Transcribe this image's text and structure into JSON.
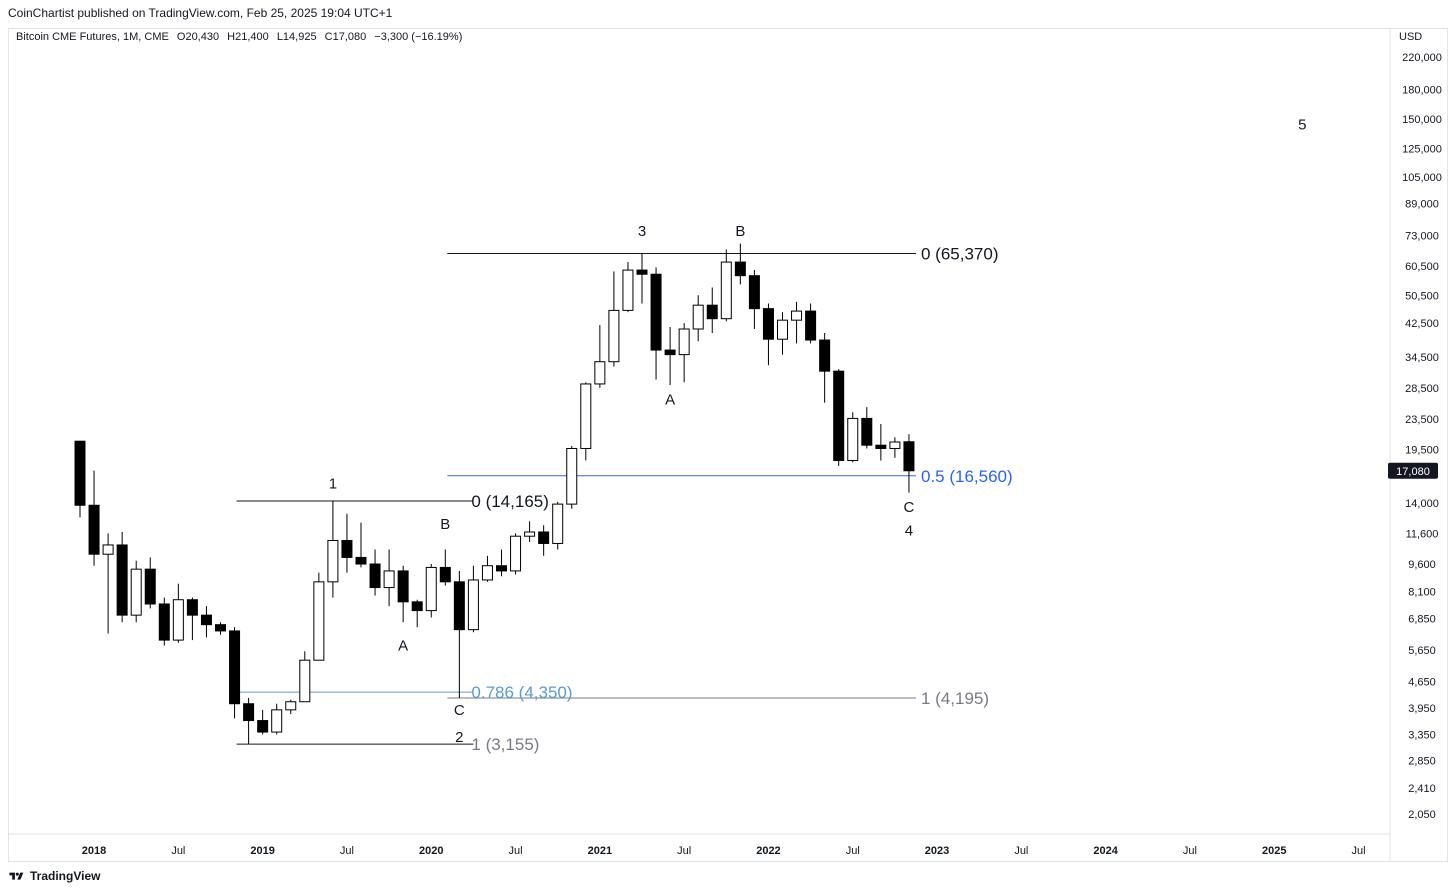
{
  "header": {
    "publish_line": "CoinChartist published on TradingView.com, Feb 25, 2025 19:04 UTC+1"
  },
  "legend": {
    "symbol": "Bitcoin CME Futures, 1M, CME",
    "open": "O20,430",
    "high": "H21,400",
    "low": "L14,925",
    "close": "C17,080",
    "change": "−3,300 (−16.19%)"
  },
  "axis": {
    "currency": "USD"
  },
  "price_label": "17,080",
  "footer": {
    "brand": "TradingView"
  },
  "colors": {
    "up_body": "#ffffff",
    "down_body": "#000000",
    "wick": "#000000",
    "fib_blue": "#2962ff",
    "fib_lightblue": "#5b9bd5",
    "fib_gray": "#787b86"
  },
  "chart_data": {
    "type": "candlestick",
    "y_scale": "log",
    "ylim": [
      1800,
      260000
    ],
    "y_ticks": [
      220000,
      180000,
      150000,
      125000,
      105000,
      89000,
      73000,
      60500,
      50500,
      42500,
      34500,
      28500,
      23500,
      19500,
      14000,
      11600,
      9600,
      8100,
      6850,
      5650,
      4650,
      3950,
      3350,
      2850,
      2410,
      2050
    ],
    "x_ticks": [
      {
        "date": "2018-01",
        "label": "2018",
        "major": true
      },
      {
        "date": "2018-07",
        "label": "Jul",
        "major": false
      },
      {
        "date": "2019-01",
        "label": "2019",
        "major": true
      },
      {
        "date": "2019-07",
        "label": "Jul",
        "major": false
      },
      {
        "date": "2020-01",
        "label": "2020",
        "major": true
      },
      {
        "date": "2020-07",
        "label": "Jul",
        "major": false
      },
      {
        "date": "2021-01",
        "label": "2021",
        "major": true
      },
      {
        "date": "2021-07",
        "label": "Jul",
        "major": false
      },
      {
        "date": "2022-01",
        "label": "2022",
        "major": true
      },
      {
        "date": "2022-07",
        "label": "Jul",
        "major": false
      },
      {
        "date": "2023-01",
        "label": "2023",
        "major": true
      },
      {
        "date": "2023-07",
        "label": "Jul",
        "major": false
      },
      {
        "date": "2024-01",
        "label": "2024",
        "major": true
      },
      {
        "date": "2024-07",
        "label": "Jul",
        "major": false
      },
      {
        "date": "2025-01",
        "label": "2025",
        "major": true
      },
      {
        "date": "2025-07",
        "label": "Jul",
        "major": false
      }
    ],
    "candles": [
      {
        "date": "2017-12",
        "o": 20500,
        "h": 20500,
        "l": 12800,
        "c": 13800
      },
      {
        "date": "2018-01",
        "o": 13800,
        "h": 17100,
        "l": 9500,
        "c": 10200
      },
      {
        "date": "2018-02",
        "o": 10200,
        "h": 11600,
        "l": 6250,
        "c": 10800
      },
      {
        "date": "2018-03",
        "o": 10800,
        "h": 11700,
        "l": 6700,
        "c": 7000
      },
      {
        "date": "2018-04",
        "o": 7000,
        "h": 9800,
        "l": 6700,
        "c": 9300
      },
      {
        "date": "2018-05",
        "o": 9300,
        "h": 10000,
        "l": 7300,
        "c": 7500
      },
      {
        "date": "2018-06",
        "o": 7500,
        "h": 7800,
        "l": 5800,
        "c": 6000
      },
      {
        "date": "2018-07",
        "o": 6000,
        "h": 8500,
        "l": 5900,
        "c": 7700
      },
      {
        "date": "2018-08",
        "o": 7700,
        "h": 7800,
        "l": 6000,
        "c": 7000
      },
      {
        "date": "2018-09",
        "o": 7000,
        "h": 7400,
        "l": 6100,
        "c": 6600
      },
      {
        "date": "2018-10",
        "o": 6600,
        "h": 6700,
        "l": 6200,
        "c": 6350
      },
      {
        "date": "2018-11",
        "o": 6350,
        "h": 6500,
        "l": 3700,
        "c": 4050
      },
      {
        "date": "2018-12",
        "o": 4050,
        "h": 4200,
        "l": 3155,
        "c": 3650
      },
      {
        "date": "2019-01",
        "o": 3650,
        "h": 3900,
        "l": 3350,
        "c": 3400
      },
      {
        "date": "2019-02",
        "o": 3400,
        "h": 4050,
        "l": 3350,
        "c": 3900
      },
      {
        "date": "2019-03",
        "o": 3900,
        "h": 4150,
        "l": 3800,
        "c": 4100
      },
      {
        "date": "2019-04",
        "o": 4100,
        "h": 5600,
        "l": 4100,
        "c": 5300
      },
      {
        "date": "2019-05",
        "o": 5300,
        "h": 9100,
        "l": 5300,
        "c": 8600
      },
      {
        "date": "2019-06",
        "o": 8600,
        "h": 14165,
        "l": 7800,
        "c": 11100
      },
      {
        "date": "2019-07",
        "o": 11100,
        "h": 13100,
        "l": 9100,
        "c": 10000
      },
      {
        "date": "2019-08",
        "o": 10000,
        "h": 12400,
        "l": 9400,
        "c": 9600
      },
      {
        "date": "2019-09",
        "o": 9600,
        "h": 10500,
        "l": 7900,
        "c": 8300
      },
      {
        "date": "2019-10",
        "o": 8300,
        "h": 10500,
        "l": 7400,
        "c": 9200
      },
      {
        "date": "2019-11",
        "o": 9200,
        "h": 9500,
        "l": 6700,
        "c": 7600
      },
      {
        "date": "2019-12",
        "o": 7600,
        "h": 7700,
        "l": 6500,
        "c": 7200
      },
      {
        "date": "2020-01",
        "o": 7200,
        "h": 9600,
        "l": 6900,
        "c": 9400
      },
      {
        "date": "2020-02",
        "o": 9400,
        "h": 10500,
        "l": 8400,
        "c": 8600
      },
      {
        "date": "2020-03",
        "o": 8600,
        "h": 9200,
        "l": 4195,
        "c": 6400
      },
      {
        "date": "2020-04",
        "o": 6400,
        "h": 9500,
        "l": 6300,
        "c": 8700
      },
      {
        "date": "2020-05",
        "o": 8700,
        "h": 10100,
        "l": 8600,
        "c": 9500
      },
      {
        "date": "2020-06",
        "o": 9500,
        "h": 10500,
        "l": 8900,
        "c": 9200
      },
      {
        "date": "2020-07",
        "o": 9200,
        "h": 11600,
        "l": 9000,
        "c": 11400
      },
      {
        "date": "2020-08",
        "o": 11400,
        "h": 12500,
        "l": 11000,
        "c": 11700
      },
      {
        "date": "2020-09",
        "o": 11700,
        "h": 12200,
        "l": 10100,
        "c": 10900
      },
      {
        "date": "2020-10",
        "o": 10900,
        "h": 14100,
        "l": 10500,
        "c": 13900
      },
      {
        "date": "2020-11",
        "o": 13900,
        "h": 19900,
        "l": 13500,
        "c": 19600
      },
      {
        "date": "2020-12",
        "o": 19600,
        "h": 29500,
        "l": 18200,
        "c": 29200
      },
      {
        "date": "2021-01",
        "o": 29200,
        "h": 42000,
        "l": 28500,
        "c": 33500
      },
      {
        "date": "2021-02",
        "o": 33500,
        "h": 58500,
        "l": 32500,
        "c": 46000
      },
      {
        "date": "2021-03",
        "o": 46000,
        "h": 62000,
        "l": 45500,
        "c": 59000
      },
      {
        "date": "2021-04",
        "o": 59000,
        "h": 65370,
        "l": 48000,
        "c": 57500
      },
      {
        "date": "2021-05",
        "o": 57500,
        "h": 60000,
        "l": 30000,
        "c": 36000
      },
      {
        "date": "2021-06",
        "o": 36000,
        "h": 41500,
        "l": 29000,
        "c": 35000
      },
      {
        "date": "2021-07",
        "o": 35000,
        "h": 42500,
        "l": 29500,
        "c": 41000
      },
      {
        "date": "2021-08",
        "o": 41000,
        "h": 50500,
        "l": 38000,
        "c": 47500
      },
      {
        "date": "2021-09",
        "o": 47500,
        "h": 53000,
        "l": 40000,
        "c": 43700
      },
      {
        "date": "2021-10",
        "o": 43700,
        "h": 67000,
        "l": 43000,
        "c": 62000
      },
      {
        "date": "2021-11",
        "o": 62000,
        "h": 69500,
        "l": 54000,
        "c": 57000
      },
      {
        "date": "2021-12",
        "o": 57000,
        "h": 59000,
        "l": 41000,
        "c": 46500
      },
      {
        "date": "2022-01",
        "o": 46500,
        "h": 48000,
        "l": 32800,
        "c": 38500
      },
      {
        "date": "2022-02",
        "o": 38500,
        "h": 45500,
        "l": 35000,
        "c": 43300
      },
      {
        "date": "2022-03",
        "o": 43300,
        "h": 48500,
        "l": 37500,
        "c": 45800
      },
      {
        "date": "2022-04",
        "o": 45800,
        "h": 48000,
        "l": 37500,
        "c": 38300
      },
      {
        "date": "2022-05",
        "o": 38300,
        "h": 40000,
        "l": 26000,
        "c": 31600
      },
      {
        "date": "2022-06",
        "o": 31600,
        "h": 32000,
        "l": 17600,
        "c": 18200
      },
      {
        "date": "2022-07",
        "o": 18200,
        "h": 24500,
        "l": 18000,
        "c": 23600
      },
      {
        "date": "2022-08",
        "o": 23600,
        "h": 25300,
        "l": 19600,
        "c": 20000
      },
      {
        "date": "2022-09",
        "o": 20000,
        "h": 22800,
        "l": 18200,
        "c": 19600
      },
      {
        "date": "2022-10",
        "o": 19600,
        "h": 21000,
        "l": 18500,
        "c": 20400
      },
      {
        "date": "2022-11",
        "o": 20430,
        "h": 21400,
        "l": 14925,
        "c": 17080
      }
    ],
    "horizontal_lines": [
      {
        "id": "fib1-zero",
        "from": "2018-12",
        "to": "2020-03",
        "price": 14165,
        "color": "black"
      },
      {
        "id": "fib1-one",
        "from": "2018-12",
        "to": "2020-03",
        "price": 3155,
        "color": "black"
      },
      {
        "id": "fib1-786",
        "from": "2018-12",
        "to": "2020-03",
        "price": 4350,
        "color": "lightblue"
      },
      {
        "id": "fib2-zero",
        "from": "2020-03",
        "to": "2022-11",
        "price": 65370,
        "color": "black"
      },
      {
        "id": "fib2-one",
        "from": "2020-03",
        "to": "2022-11",
        "price": 4195,
        "color": "gray"
      },
      {
        "id": "fib2-05",
        "from": "2020-03",
        "to": "2022-11",
        "price": 16560,
        "color": "blue"
      }
    ],
    "annotations": [
      {
        "id": "fib-0-65370",
        "text": "0 (65,370)",
        "date": "2022-12",
        "price": 65370,
        "color": "black",
        "size": "fib"
      },
      {
        "id": "fib-0-14165",
        "text": "0 (14,165)",
        "date": "2020-04",
        "price": 14165,
        "color": "black",
        "size": "fib"
      },
      {
        "id": "fib-05-16560",
        "text": "0.5 (16,560)",
        "date": "2022-12",
        "price": 16560,
        "color": "blue",
        "size": "fib"
      },
      {
        "id": "fib-0786-4350",
        "text": "0.786 (4,350)",
        "date": "2020-04",
        "price": 4350,
        "color": "lightblue",
        "size": "fib"
      },
      {
        "id": "fib-1-4195",
        "text": "1 (4,195)",
        "date": "2022-12",
        "price": 4195,
        "color": "gray",
        "size": "fib"
      },
      {
        "id": "fib-1-3155",
        "text": "1 (3,155)",
        "date": "2020-04",
        "price": 3155,
        "color": "gray",
        "size": "fib"
      },
      {
        "id": "wave-1",
        "text": "1",
        "date": "2019-06",
        "price": 15800,
        "color": "black",
        "size": "wave"
      },
      {
        "id": "wave-a-2019",
        "text": "A",
        "date": "2019-11",
        "price": 5800,
        "color": "black",
        "size": "wave"
      },
      {
        "id": "wave-b-2020",
        "text": "B",
        "date": "2020-02",
        "price": 12300,
        "color": "black",
        "size": "wave"
      },
      {
        "id": "wave-c-2020",
        "text": "C",
        "date": "2020-03",
        "price": 3900,
        "color": "black",
        "size": "wave"
      },
      {
        "id": "wave-2",
        "text": "2",
        "date": "2020-03",
        "price": 3300,
        "color": "black",
        "size": "wave"
      },
      {
        "id": "wave-3",
        "text": "3",
        "date": "2021-04",
        "price": 75000,
        "color": "black",
        "size": "wave"
      },
      {
        "id": "wave-a-2021",
        "text": "A",
        "date": "2021-06",
        "price": 26500,
        "color": "black",
        "size": "wave"
      },
      {
        "id": "wave-b-2021",
        "text": "B",
        "date": "2021-11",
        "price": 75000,
        "color": "black",
        "size": "wave"
      },
      {
        "id": "wave-c-2022",
        "text": "C",
        "date": "2022-11",
        "price": 13650,
        "color": "black",
        "size": "wave"
      },
      {
        "id": "wave-4",
        "text": "4",
        "date": "2022-11",
        "price": 11800,
        "color": "black",
        "size": "wave"
      },
      {
        "id": "wave-5",
        "text": "5",
        "date": "2025-03",
        "price": 145000,
        "color": "black",
        "size": "wave"
      }
    ]
  }
}
